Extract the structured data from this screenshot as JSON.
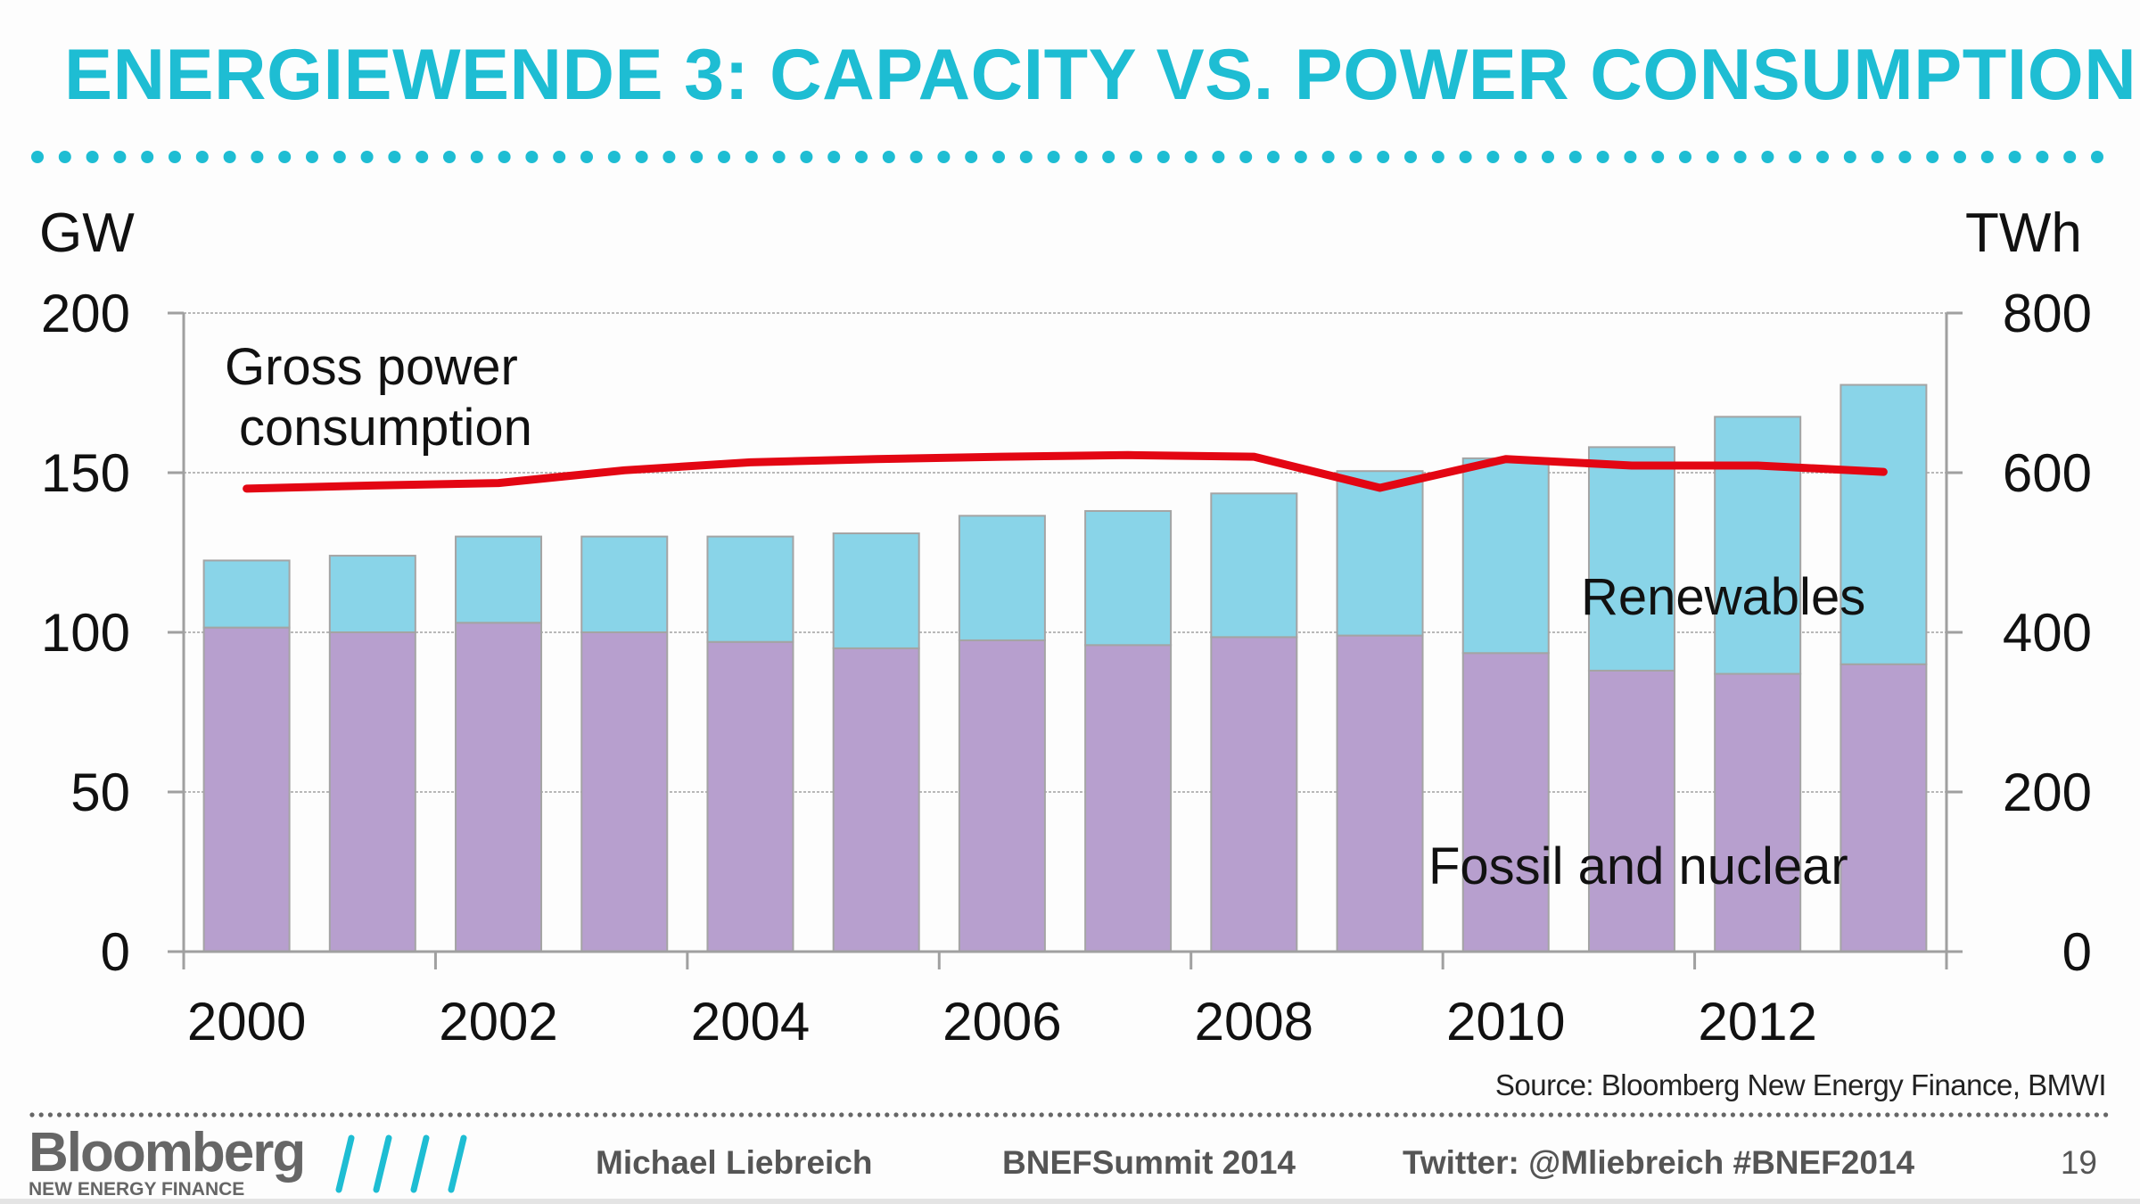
{
  "slide": {
    "title": "ENERGIEWENDE 3: CAPACITY VS. POWER CONSUMPTION",
    "accent_color": "#1ebdd3",
    "source": "Source: Bloomberg New Energy Finance, BMWI",
    "page_number": "19"
  },
  "footer": {
    "logo_main": "Bloomberg",
    "logo_sub": "NEW ENERGY FINANCE",
    "presenter": "Michael Liebreich",
    "event": "BNEFSummit 2014",
    "twitter": "Twitter:  @Mliebreich  #BNEF2014"
  },
  "chart_data": {
    "type": "bar",
    "stacked": true,
    "title": "",
    "categories": [
      "2000",
      "2001",
      "2002",
      "2003",
      "2004",
      "2005",
      "2006",
      "2007",
      "2008",
      "2009",
      "2010",
      "2011",
      "2012",
      "2013"
    ],
    "x_tick_labels": [
      "2000",
      "2002",
      "2004",
      "2006",
      "2008",
      "2010",
      "2012"
    ],
    "ylabel_left": "GW",
    "ylabel_right": "TWh",
    "ylim_left": [
      0,
      200
    ],
    "ylim_right": [
      0,
      800
    ],
    "yticks_left": [
      0,
      50,
      100,
      150,
      200
    ],
    "yticks_right": [
      0,
      200,
      400,
      600,
      800
    ],
    "grid": true,
    "series": [
      {
        "name": "Fossil and nuclear",
        "axis": "left",
        "kind": "bar",
        "color": "#b79fce",
        "values": [
          101.5,
          100,
          103,
          100,
          97,
          95,
          97.5,
          96,
          98.5,
          99,
          93.5,
          88,
          87,
          90
        ]
      },
      {
        "name": "Renewables",
        "axis": "left",
        "kind": "bar",
        "color": "#89d4e8",
        "values": [
          21,
          24,
          27,
          30,
          33,
          36,
          39,
          42,
          45,
          51.5,
          61,
          70,
          80.5,
          87.5
        ]
      },
      {
        "name": "Gross power consumption",
        "axis": "right",
        "kind": "line",
        "color": "#e30613",
        "values": [
          580,
          584,
          587,
          603,
          613,
          617,
          620,
          622,
          620,
          581,
          617,
          609,
          609,
          601
        ]
      }
    ],
    "annotations": {
      "line_label": [
        "Gross power",
        "consumption"
      ],
      "renewables_label": "Renewables",
      "fossil_label": "Fossil and nuclear"
    }
  }
}
